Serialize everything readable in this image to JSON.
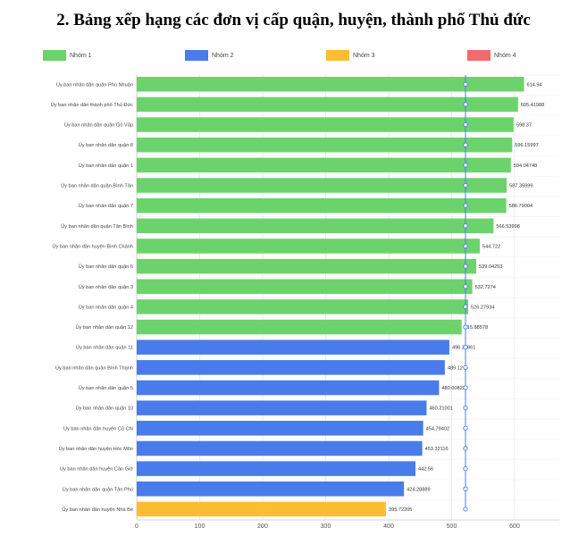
{
  "title": "2.  Bảng xếp hạng các đơn vị cấp quận, huyện, thành phố Thủ đức",
  "chart_data": {
    "type": "bar",
    "orientation": "horizontal",
    "title": "2.  Bảng xếp hạng các đơn vị cấp quận, huyện, thành phố Thủ đức",
    "xlim": [
      0,
      650
    ],
    "x_ticks": [
      0,
      100,
      200,
      300,
      400,
      500,
      600
    ],
    "grid": true,
    "legend_position": "top",
    "reference_line": 522,
    "series": [
      {
        "name": "Nhóm 1",
        "color": "#6cd36c"
      },
      {
        "name": "Nhóm 2",
        "color": "#4a7bea"
      },
      {
        "name": "Nhóm 3",
        "color": "#fbbd33"
      },
      {
        "name": "Nhóm 4",
        "color": "#f06b6b"
      }
    ],
    "bars": [
      {
        "category": "Ủy ban nhân dân quận Phú Nhuận",
        "value": 614.94,
        "label": "614.94",
        "group": 0
      },
      {
        "category": "Ủy ban nhân dân thành phố Thủ Đức",
        "value": 605.41988,
        "label": "605.41988",
        "group": 0
      },
      {
        "category": "Ủy ban nhân dân quận Gò Vấp",
        "value": 598.37,
        "label": "598.37",
        "group": 0
      },
      {
        "category": "Ủy ban nhân dân quận 8",
        "value": 596.15997,
        "label": "596.15997",
        "group": 0
      },
      {
        "category": "Ủy ban nhân dân quận 1",
        "value": 594.04748,
        "label": "594.04748",
        "group": 0
      },
      {
        "category": "Ủy ban nhân dân quận Bình Tân",
        "value": 587.35999,
        "label": "587.35999",
        "group": 0
      },
      {
        "category": "Ủy ban nhân dân quận 7",
        "value": 586.79004,
        "label": "586.79004",
        "group": 0
      },
      {
        "category": "Ủy ban nhân dân quận Tân Bình",
        "value": 566.53998,
        "label": "566.53998",
        "group": 0
      },
      {
        "category": "Ủy ban nhân dân huyện Bình Chánh",
        "value": 544.722,
        "label": "544.722",
        "group": 0
      },
      {
        "category": "Ủy ban nhân dân quận 6",
        "value": 539.04253,
        "label": "539.04253",
        "group": 0
      },
      {
        "category": "Ủy ban nhân dân quận 3",
        "value": 532.7274,
        "label": "532.7274",
        "group": 0
      },
      {
        "category": "Ủy ban nhân dân quận 4",
        "value": 526.27934,
        "label": "526.27934",
        "group": 0
      },
      {
        "category": "Ủy ban nhân dân quận 12",
        "value": 515.88578,
        "label": "515.88578",
        "group": 0
      },
      {
        "category": "Ủy ban nhân dân quận 11",
        "value": 496.38861,
        "label": "496.38861",
        "group": 1
      },
      {
        "category": "Ủy ban nhân dân quận Bình Thạnh",
        "value": 489.12,
        "label": "489.12",
        "group": 1
      },
      {
        "category": "Ủy ban nhân dân quận 5",
        "value": 480.00823,
        "label": "480.00823",
        "group": 1
      },
      {
        "category": "Ủy ban nhân dân quận 10",
        "value": 460.21001,
        "label": "460.21001",
        "group": 1
      },
      {
        "category": "Ủy ban nhân dân huyện Củ Chi",
        "value": 454.79402,
        "label": "454.79402",
        "group": 1
      },
      {
        "category": "Ủy ban nhân dân huyện Hóc Môn",
        "value": 453.32116,
        "label": "453.32116",
        "group": 1
      },
      {
        "category": "Ủy ban nhân dân huyện Cần Giờ",
        "value": 442.56,
        "label": "442.56",
        "group": 1
      },
      {
        "category": "Ủy ban nhân dân quận Tân Phú",
        "value": 424.28889,
        "label": "424.28889",
        "group": 1
      },
      {
        "category": "Ủy ban nhân dân huyện Nhà Bè",
        "value": 395.72205,
        "label": "395.72205",
        "group": 2
      }
    ]
  }
}
